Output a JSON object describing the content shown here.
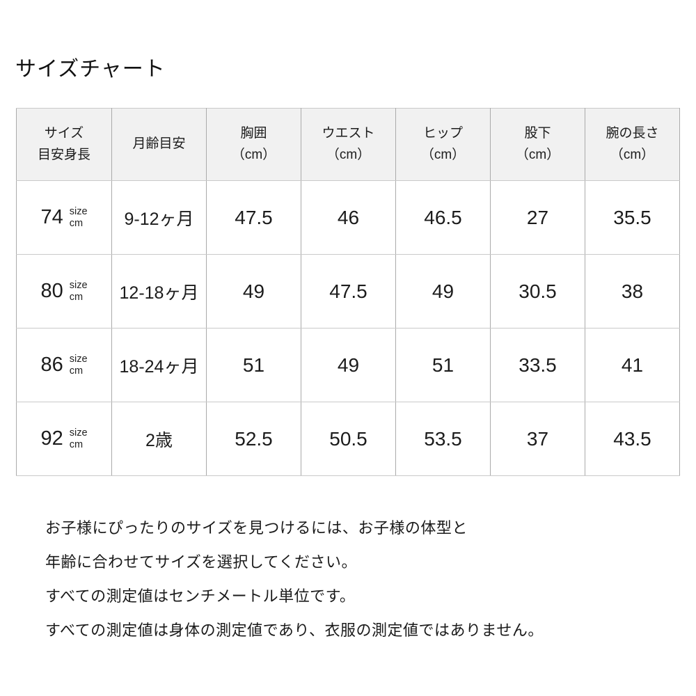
{
  "page": {
    "title": "サイズチャート",
    "background_color": "#ffffff",
    "text_color": "#1a1a1a",
    "header_bg_color": "#f1f1f1",
    "border_color": "#aaaaaa"
  },
  "table": {
    "header": {
      "size": {
        "line1": "サイズ",
        "line2": "目安身長"
      },
      "age": "月齢目安",
      "chest": {
        "label": "胸囲",
        "unit": "（cm）"
      },
      "waist": {
        "label": "ウエスト",
        "unit": "（cm）"
      },
      "hip": {
        "label": "ヒップ",
        "unit": "（cm）"
      },
      "inseam": {
        "label": "股下",
        "unit": "（cm）"
      },
      "arm": {
        "label": "腕の長さ",
        "unit": "（cm）"
      }
    },
    "size_unit": {
      "top": "size",
      "bottom": "cm"
    },
    "rows": [
      {
        "size": "74",
        "age": "9-12ヶ月",
        "chest": "47.5",
        "waist": "46",
        "hip": "46.5",
        "inseam": "27",
        "arm": "35.5"
      },
      {
        "size": "80",
        "age": "12-18ヶ月",
        "chest": "49",
        "waist": "47.5",
        "hip": "49",
        "inseam": "30.5",
        "arm": "38"
      },
      {
        "size": "86",
        "age": "18-24ヶ月",
        "chest": "51",
        "waist": "49",
        "hip": "51",
        "inseam": "33.5",
        "arm": "41"
      },
      {
        "size": "92",
        "age": "2歳",
        "chest": "52.5",
        "waist": "50.5",
        "hip": "53.5",
        "inseam": "37",
        "arm": "43.5"
      }
    ]
  },
  "notes": [
    "お子様にぴったりのサイズを見つけるには、お子様の体型と",
    "年齢に合わせてサイズを選択してください。",
    "すべての測定値はセンチメートル単位です。",
    "すべての測定値は身体の測定値であり、衣服の測定値ではありません。"
  ]
}
